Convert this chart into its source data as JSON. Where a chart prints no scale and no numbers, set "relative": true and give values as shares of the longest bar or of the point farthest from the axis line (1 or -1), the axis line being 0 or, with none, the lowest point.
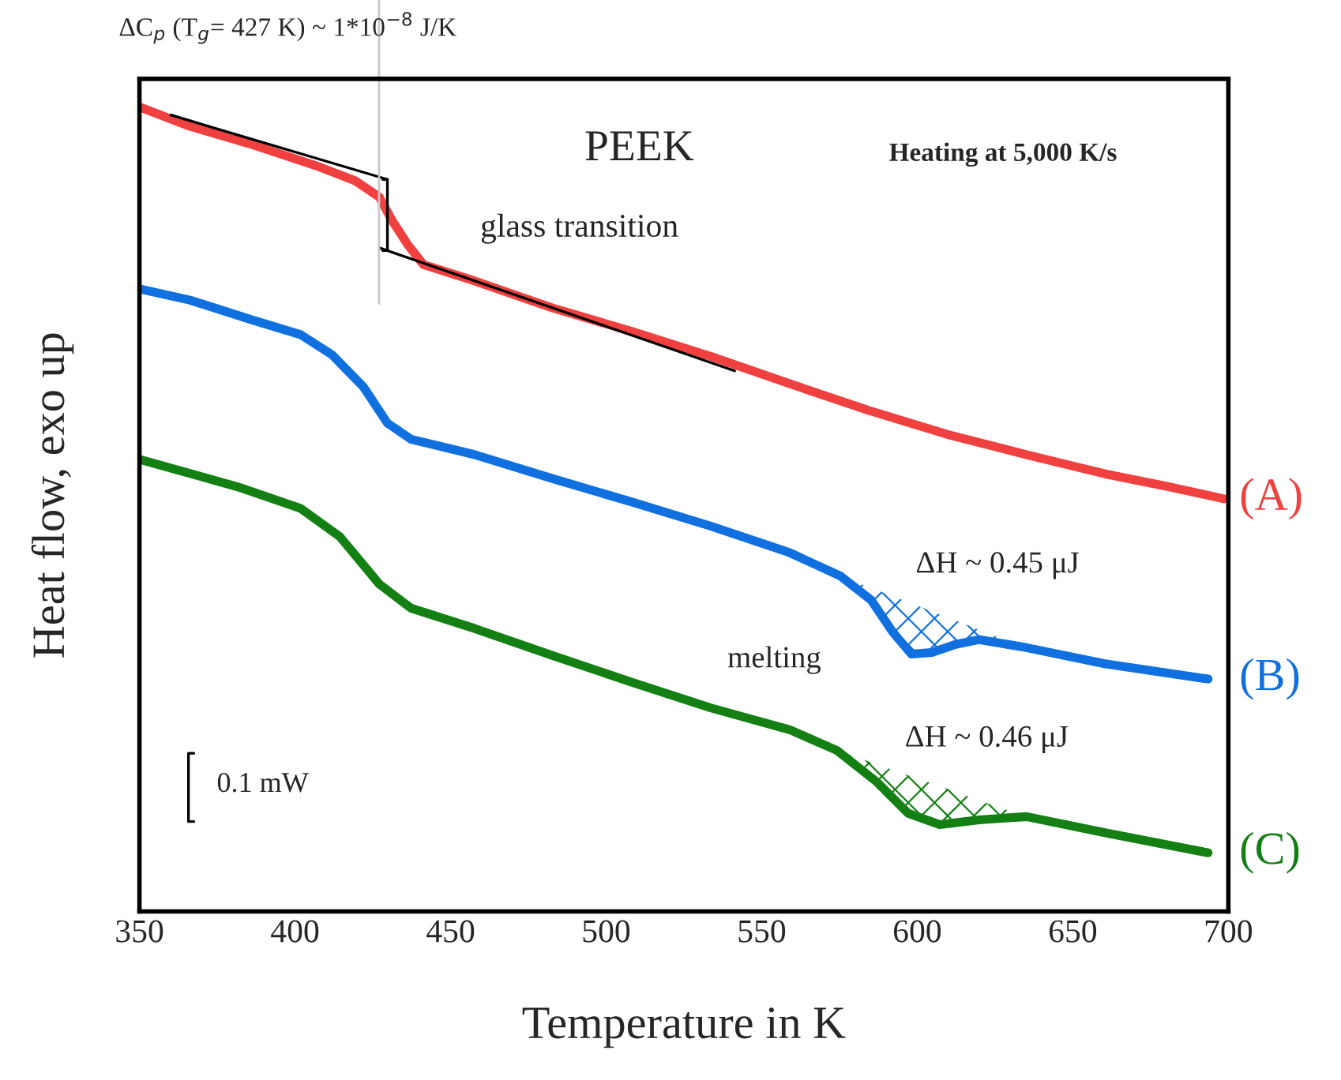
{
  "chart_data": {
    "type": "line",
    "relative": true,
    "xlabel": "Temperature in K",
    "ylabel": "Heat flow, exo up",
    "xlim": [
      350,
      700
    ],
    "xticks": [
      350,
      400,
      450,
      500,
      550,
      600,
      650,
      700
    ],
    "grid": false,
    "tick_labels": "x",
    "series": [
      {
        "name": "(A)",
        "color": "#f04040",
        "x": [
          350,
          366.2,
          386.5,
          406.8,
          419.5,
          427.1,
          431.2,
          436.2,
          441.3,
          457.6,
          482.9,
          508.3,
          533.7,
          559.0,
          584.3,
          609.7,
          635.0,
          660.3,
          680.8,
          698.6
        ],
        "values": [
          1.0,
          0.976,
          0.953,
          0.927,
          0.908,
          0.888,
          0.859,
          0.829,
          0.804,
          0.784,
          0.75,
          0.721,
          0.69,
          0.656,
          0.623,
          0.593,
          0.568,
          0.544,
          0.528,
          0.513
        ]
      },
      {
        "name": "(B)",
        "color": "#1070e0",
        "x": [
          350,
          366.2,
          386.5,
          401.8,
          411.9,
          422.0,
          429.7,
          437.3,
          457.6,
          482.9,
          508.3,
          533.7,
          559.0,
          575.3,
          585.2,
          592.0,
          598.1,
          604.7,
          612.3,
          620.0,
          635.1,
          660.3,
          693.5
        ],
        "values": [
          0.774,
          0.76,
          0.735,
          0.717,
          0.692,
          0.652,
          0.607,
          0.587,
          0.568,
          0.538,
          0.509,
          0.479,
          0.446,
          0.417,
          0.387,
          0.348,
          0.32,
          0.322,
          0.332,
          0.338,
          0.328,
          0.308,
          0.289
        ],
        "lower": [
          null,
          null,
          null,
          null,
          null,
          null,
          null,
          null,
          null,
          null,
          null,
          null,
          null,
          0.417,
          0.387,
          0.348,
          0.32,
          0.322,
          0.332,
          0.338,
          0.328,
          null,
          null
        ],
        "upper": [
          null,
          null,
          null,
          null,
          null,
          null,
          null,
          null,
          null,
          null,
          null,
          null,
          null,
          0.417,
          0.402,
          0.392,
          0.383,
          0.373,
          0.362,
          0.35,
          0.328,
          null,
          null
        ]
      },
      {
        "name": "(C)",
        "color": "#148014",
        "x": [
          350,
          381.5,
          401.8,
          414.4,
          427.1,
          437.3,
          457.6,
          482.9,
          508.3,
          533.7,
          559.0,
          574.3,
          587.0,
          597.1,
          607.2,
          619.9,
          635.1,
          660.3,
          693.5
        ],
        "values": [
          0.562,
          0.528,
          0.501,
          0.466,
          0.407,
          0.377,
          0.352,
          0.318,
          0.285,
          0.253,
          0.226,
          0.2,
          0.161,
          0.122,
          0.108,
          0.114,
          0.118,
          0.098,
          0.073
        ],
        "lower": [
          null,
          null,
          null,
          null,
          null,
          null,
          null,
          null,
          null,
          null,
          null,
          0.2,
          0.161,
          0.122,
          0.108,
          0.114,
          0.118,
          null,
          null
        ],
        "upper": [
          null,
          null,
          null,
          null,
          null,
          null,
          null,
          null,
          null,
          null,
          null,
          0.2,
          0.183,
          0.169,
          0.156,
          0.138,
          0.118,
          null,
          null
        ]
      },
      {
        "type": "line",
        "color": "#000000",
        "x": [
          360.1,
          429.7
        ],
        "values": [
          0.99,
          0.91
        ]
      },
      {
        "type": "line",
        "color": "#000000",
        "x": [
          427.1,
          541.3
        ],
        "values": [
          0.825,
          0.672
        ]
      }
    ],
    "ref_lines": [
      {
        "axis": "x",
        "value": 427,
        "color": "#c8c8c8"
      }
    ],
    "annotations": [
      "ΔC$_{p}$ (T$_{g}$= 427 K) ~ 1*10$^{−8}$ J/K",
      "PEEK",
      "Heating at 5,000 K/s",
      "glass transition",
      "melting",
      "ΔH ~ 0.45 μJ",
      "ΔH ~ 0.46 μJ",
      "0.1 mW"
    ]
  }
}
